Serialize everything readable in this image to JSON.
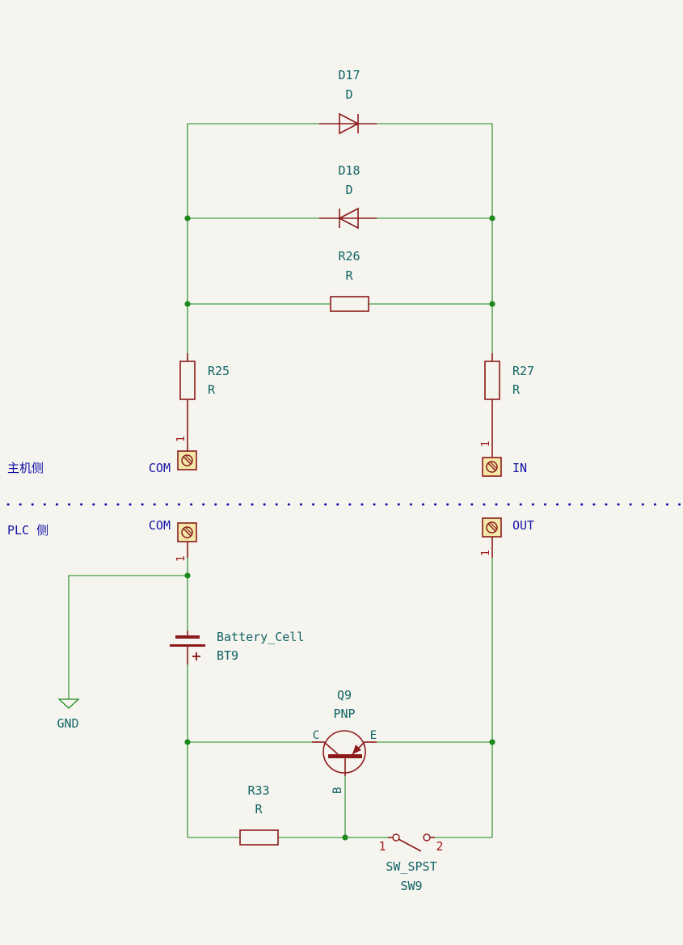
{
  "side_labels": {
    "host_side": "主机侧",
    "plc_side": "PLC 侧"
  },
  "components": {
    "d17": {
      "ref": "D17",
      "value": "D"
    },
    "d18": {
      "ref": "D18",
      "value": "D"
    },
    "r26": {
      "ref": "R26",
      "value": "R"
    },
    "r25": {
      "ref": "R25",
      "value": "R"
    },
    "r27": {
      "ref": "R27",
      "value": "R"
    },
    "r33": {
      "ref": "R33",
      "value": "R"
    },
    "bt9": {
      "value": "Battery_Cell",
      "ref": "BT9",
      "polarity": "+"
    },
    "q9": {
      "ref": "Q9",
      "value": "PNP",
      "pin_c": "C",
      "pin_e": "E",
      "pin_b": "B"
    },
    "sw9": {
      "value": "SW_SPST",
      "ref": "SW9",
      "pin1": "1",
      "pin2": "2"
    },
    "gnd": {
      "label": "GND"
    }
  },
  "connectors": {
    "host_com": {
      "label": "COM",
      "pin": "1"
    },
    "host_in": {
      "label": "IN",
      "pin": "1"
    },
    "plc_com": {
      "label": "COM",
      "pin": "1"
    },
    "plc_out": {
      "label": "OUT",
      "pin": "1"
    }
  },
  "colors": {
    "wire": "#1b8a1b",
    "component": "#8b1a1a",
    "reference_text": "#0f6464",
    "net_label": "#1212a8",
    "pin_number": "#a01818",
    "background": "#f5f4ef"
  }
}
